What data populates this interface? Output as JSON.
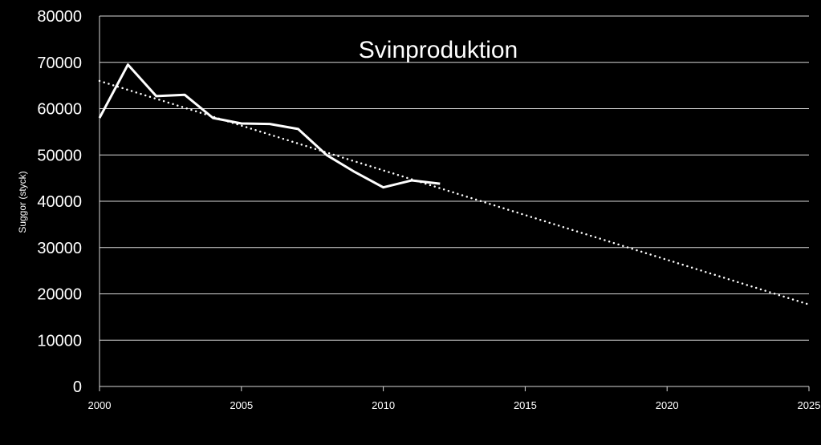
{
  "chart_data": {
    "type": "line",
    "title": "Svinproduktion",
    "xlabel": "",
    "ylabel": "Suggor (styck)",
    "xlim": [
      2000,
      2025
    ],
    "ylim": [
      0,
      80000
    ],
    "x_ticks": [
      2000,
      2005,
      2010,
      2015,
      2020,
      2025
    ],
    "y_ticks": [
      0,
      10000,
      20000,
      30000,
      40000,
      50000,
      60000,
      70000,
      80000
    ],
    "grid": true,
    "legend": "none",
    "series": [
      {
        "x": [
          2000,
          2001,
          2002,
          2003,
          2004,
          2005,
          2006,
          2007,
          2008,
          2009,
          2010,
          2011,
          2012
        ],
        "values": [
          58000,
          69500,
          62700,
          63000,
          58000,
          56800,
          56700,
          55600,
          50000,
          46300,
          43000,
          44500,
          43800
        ],
        "style": "solid",
        "color": "#ffffff"
      },
      {
        "x": [
          2000,
          2025
        ],
        "values": [
          66000,
          17700
        ],
        "style": "dotted",
        "color": "#ffffff"
      }
    ],
    "background": "#000000",
    "grid_color": "#d9d9d9",
    "text_color": "#ffffff"
  }
}
